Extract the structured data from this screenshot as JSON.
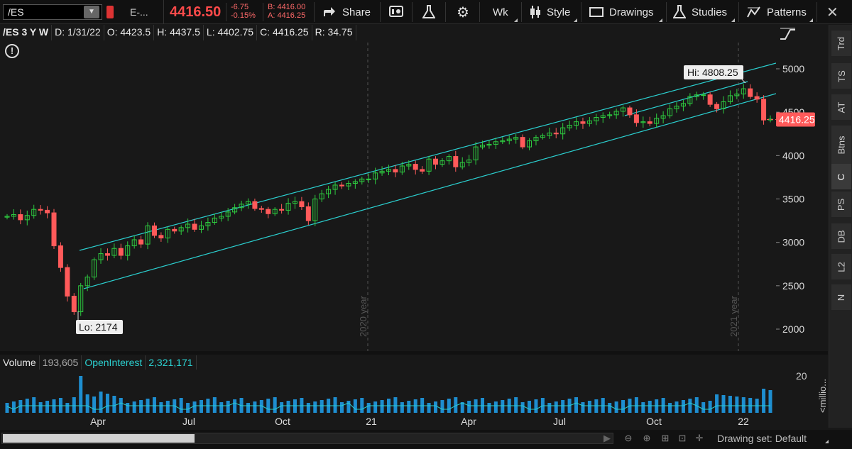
{
  "toolbar": {
    "symbol": "/ES",
    "description": "E-...",
    "last_price": "4416.50",
    "net_change": "-6.75",
    "net_change_pct": "-0.15%",
    "bid": "B: 4416.00",
    "ask": "A: 4416.25",
    "share_label": "Share",
    "aggregation_label": "Wk",
    "style_label": "Style",
    "drawings_label": "Drawings",
    "studies_label": "Studies",
    "patterns_label": "Patterns"
  },
  "infobar": {
    "symbol_period": "/ES 3 Y W",
    "date": "D: 1/31/22",
    "open": "O: 4423.5",
    "high": "H: 4437.5",
    "low": "L: 4402.75",
    "close": "C: 4416.25",
    "range": "R: 34.75"
  },
  "annotations": {
    "high_label": "Hi: 4808.25",
    "low_label": "Lo: 2174",
    "year_2020": "2020 year",
    "year_2021": "2021 year",
    "current_price_label": "4416.25"
  },
  "price_axis": {
    "ticks": [
      "5000",
      "4500",
      "4000",
      "3500",
      "3000",
      "2500",
      "2000"
    ]
  },
  "volume": {
    "title": "Volume",
    "value": "193,605",
    "oi_title": "OpenInterest",
    "oi_value": "2,321,171",
    "axis_tick": "20",
    "axis_unit": "<millio..."
  },
  "time_axis": {
    "labels": [
      "Apr",
      "Jul",
      "Oct",
      "21",
      "Apr",
      "Jul",
      "Oct",
      "22"
    ]
  },
  "right_panel": {
    "buttons": [
      "Trd",
      "TS",
      "AT",
      "Btns",
      "C",
      "PS",
      "DB",
      "L2",
      "N"
    ]
  },
  "bottom": {
    "drawing_set": "Drawing set: Default"
  },
  "colors": {
    "up": "#2ecc40",
    "down": "#ff5a5a",
    "channel": "#2bd0d0",
    "volume": "#1e8ed0",
    "oi": "#2bd0d0"
  },
  "chart_data": {
    "type": "candlestick",
    "title": "/ES 3 Y W",
    "ylim": [
      1800,
      5200
    ],
    "weekly_close_approx": [
      3300,
      3320,
      3260,
      3310,
      3380,
      3370,
      3340,
      2960,
      2710,
      2380,
      2200,
      2500,
      2600,
      2800,
      2870,
      2850,
      2930,
      2850,
      2960,
      3030,
      2980,
      3190,
      3080,
      3050,
      3150,
      3130,
      3170,
      3210,
      3150,
      3190,
      3230,
      3280,
      3300,
      3350,
      3400,
      3440,
      3470,
      3390,
      3380,
      3330,
      3380,
      3370,
      3450,
      3470,
      3410,
      3250,
      3500,
      3560,
      3610,
      3660,
      3650,
      3680,
      3700,
      3730,
      3730,
      3800,
      3820,
      3840,
      3810,
      3880,
      3900,
      3840,
      3820,
      3960,
      3900,
      3940,
      3990,
      3870,
      3920,
      3950,
      4100,
      4120,
      4130,
      4160,
      4170,
      4190,
      4210,
      4100,
      4170,
      4210,
      4230,
      4260,
      4250,
      4320,
      4350,
      4390,
      4370,
      4400,
      4440,
      4460,
      4470,
      4510,
      4550,
      4470,
      4380,
      4390,
      4370,
      4430,
      4460,
      4540,
      4570,
      4600,
      4680,
      4700,
      4700,
      4590,
      4540,
      4620,
      4690,
      4710,
      4770,
      4680,
      4650,
      4410,
      4420
    ]
  }
}
